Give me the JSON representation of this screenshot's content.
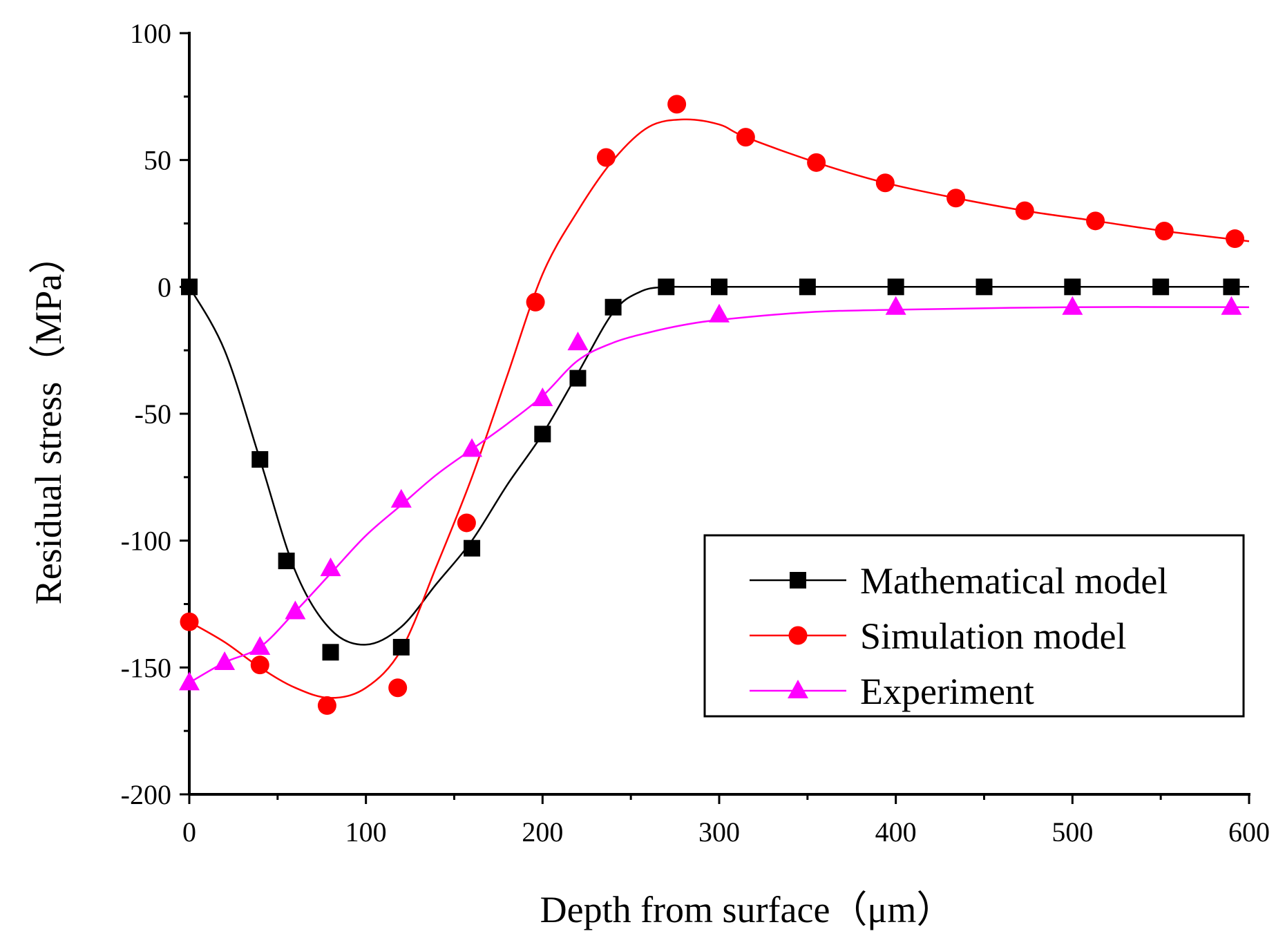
{
  "chart_data": {
    "type": "line",
    "title": "",
    "xlabel": "Depth from surface（μm）",
    "ylabel": "Residual stress（MPa）",
    "xlim": [
      0,
      600
    ],
    "ylim": [
      -200,
      100
    ],
    "x_ticks": [
      0,
      100,
      200,
      300,
      400,
      500,
      600
    ],
    "y_ticks": [
      -200,
      -150,
      -100,
      -50,
      0,
      50,
      100
    ],
    "x_tick_labels": [
      "0",
      "100",
      "200",
      "300",
      "400",
      "500",
      "600"
    ],
    "y_tick_labels": [
      "-200",
      "-150",
      "-100",
      "-50",
      "0",
      "50",
      "100"
    ],
    "grid": false,
    "legend_position": "bottom-right",
    "series": [
      {
        "name": "Mathematical model",
        "color": "#000000",
        "marker": "square",
        "points": [
          [
            0,
            0
          ],
          [
            40,
            -68
          ],
          [
            55,
            -108
          ],
          [
            80,
            -144
          ],
          [
            120,
            -142
          ],
          [
            160,
            -103
          ],
          [
            200,
            -58
          ],
          [
            220,
            -36
          ],
          [
            240,
            -8
          ],
          [
            270,
            0
          ],
          [
            300,
            0
          ],
          [
            350,
            0
          ],
          [
            400,
            0
          ],
          [
            450,
            0
          ],
          [
            500,
            0
          ],
          [
            550,
            0
          ],
          [
            590,
            0
          ]
        ],
        "curve": [
          [
            0,
            0
          ],
          [
            20,
            -25
          ],
          [
            40,
            -68
          ],
          [
            60,
            -112
          ],
          [
            80,
            -135
          ],
          [
            100,
            -141
          ],
          [
            120,
            -134
          ],
          [
            140,
            -117
          ],
          [
            160,
            -100
          ],
          [
            180,
            -78
          ],
          [
            200,
            -58
          ],
          [
            220,
            -34
          ],
          [
            240,
            -10
          ],
          [
            255,
            -2
          ],
          [
            270,
            0
          ],
          [
            300,
            0
          ],
          [
            600,
            0
          ]
        ]
      },
      {
        "name": "Simulation model",
        "color": "#ff0000",
        "marker": "circle",
        "points": [
          [
            0,
            -132
          ],
          [
            40,
            -149
          ],
          [
            78,
            -165
          ],
          [
            118,
            -158
          ],
          [
            157,
            -93
          ],
          [
            196,
            -6
          ],
          [
            236,
            51
          ],
          [
            276,
            72
          ],
          [
            315,
            59
          ],
          [
            355,
            49
          ],
          [
            394,
            41
          ],
          [
            434,
            35
          ],
          [
            473,
            30
          ],
          [
            513,
            26
          ],
          [
            552,
            22
          ],
          [
            592,
            19
          ]
        ],
        "curve": [
          [
            0,
            -132
          ],
          [
            20,
            -140
          ],
          [
            40,
            -150
          ],
          [
            60,
            -158
          ],
          [
            80,
            -162
          ],
          [
            100,
            -158
          ],
          [
            120,
            -143
          ],
          [
            140,
            -110
          ],
          [
            160,
            -75
          ],
          [
            180,
            -35
          ],
          [
            200,
            5
          ],
          [
            220,
            30
          ],
          [
            240,
            50
          ],
          [
            260,
            63
          ],
          [
            280,
            66
          ],
          [
            300,
            64
          ],
          [
            315,
            59
          ],
          [
            355,
            49
          ],
          [
            394,
            41
          ],
          [
            434,
            35
          ],
          [
            473,
            30
          ],
          [
            513,
            26
          ],
          [
            552,
            22
          ],
          [
            600,
            18
          ]
        ]
      },
      {
        "name": "Experiment",
        "color": "#ff00ff",
        "marker": "triangle",
        "points": [
          [
            0,
            -156
          ],
          [
            20,
            -148
          ],
          [
            40,
            -142
          ],
          [
            60,
            -128
          ],
          [
            80,
            -111
          ],
          [
            120,
            -84
          ],
          [
            160,
            -64
          ],
          [
            200,
            -44
          ],
          [
            220,
            -22
          ],
          [
            300,
            -11
          ],
          [
            400,
            -8
          ],
          [
            500,
            -8
          ],
          [
            590,
            -8
          ]
        ],
        "curve": [
          [
            0,
            -156
          ],
          [
            20,
            -148
          ],
          [
            40,
            -142
          ],
          [
            60,
            -128
          ],
          [
            80,
            -113
          ],
          [
            100,
            -98
          ],
          [
            120,
            -86
          ],
          [
            140,
            -74
          ],
          [
            160,
            -64
          ],
          [
            180,
            -54
          ],
          [
            200,
            -43
          ],
          [
            220,
            -29
          ],
          [
            240,
            -22
          ],
          [
            260,
            -18
          ],
          [
            280,
            -15
          ],
          [
            300,
            -13
          ],
          [
            350,
            -10
          ],
          [
            400,
            -9
          ],
          [
            500,
            -8
          ],
          [
            600,
            -8
          ]
        ]
      }
    ]
  }
}
